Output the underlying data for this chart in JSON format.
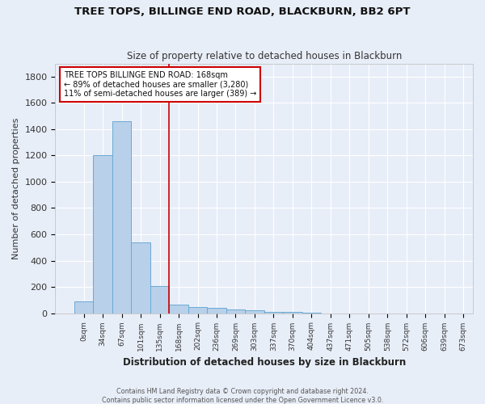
{
  "title": "TREE TOPS, BILLINGE END ROAD, BLACKBURN, BB2 6PT",
  "subtitle": "Size of property relative to detached houses in Blackburn",
  "xlabel": "Distribution of detached houses by size in Blackburn",
  "ylabel": "Number of detached properties",
  "footnote1": "Contains HM Land Registry data © Crown copyright and database right 2024.",
  "footnote2": "Contains public sector information licensed under the Open Government Licence v3.0.",
  "bin_labels": [
    "0sqm",
    "34sqm",
    "67sqm",
    "101sqm",
    "135sqm",
    "168sqm",
    "202sqm",
    "236sqm",
    "269sqm",
    "303sqm",
    "337sqm",
    "370sqm",
    "404sqm",
    "437sqm",
    "471sqm",
    "505sqm",
    "538sqm",
    "572sqm",
    "606sqm",
    "639sqm",
    "673sqm"
  ],
  "bar_heights": [
    90,
    1200,
    1460,
    540,
    205,
    65,
    48,
    38,
    28,
    20,
    10,
    8,
    5,
    0,
    0,
    0,
    0,
    0,
    0,
    0
  ],
  "bar_color": "#b8d0ea",
  "bar_edge_color": "#6aaad4",
  "background_color": "#e8eef8",
  "grid_color": "#ffffff",
  "red_line_x": 4.5,
  "annotation_text": "TREE TOPS BILLINGE END ROAD: 168sqm\n← 89% of detached houses are smaller (3,280)\n11% of semi-detached houses are larger (389) →",
  "annotation_box_color": "#ffffff",
  "annotation_box_edge": "#cc0000",
  "ylim": [
    0,
    1900
  ],
  "yticks": [
    0,
    200,
    400,
    600,
    800,
    1000,
    1200,
    1400,
    1600,
    1800
  ]
}
